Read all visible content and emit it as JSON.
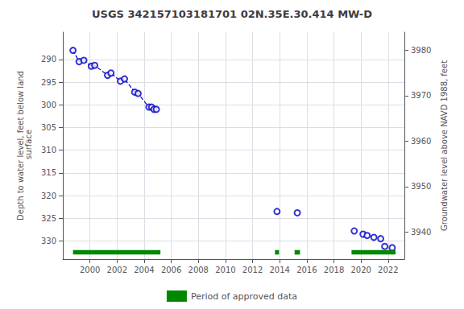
{
  "chart_data": {
    "type": "scatter",
    "title": "USGS 342157103181701 02N.35E.30.414 MW-D",
    "ylabel": "Depth to water level, feet below land\n surface",
    "y2label": "Groundwater level above NAVD 1988, feet",
    "xlim": [
      1998.0,
      2023.2
    ],
    "xticks": [
      2000,
      2002,
      2004,
      2006,
      2008,
      2010,
      2012,
      2014,
      2016,
      2018,
      2020,
      2022
    ],
    "ylim": [
      334,
      284
    ],
    "yticks": [
      290,
      295,
      300,
      305,
      310,
      315,
      320,
      325,
      330
    ],
    "y2lim": [
      3934,
      3984
    ],
    "y2ticks": [
      3940,
      3950,
      3960,
      3970,
      3980
    ],
    "grid": true,
    "legend": "bottom",
    "series": [
      {
        "type": "line",
        "line_style": "dashed",
        "color": "#0000cc",
        "x": [
          1998.75,
          1999.2,
          1999.55,
          2000.1,
          2000.35,
          2001.3,
          2001.55,
          2002.25,
          2002.55,
          2003.3,
          2003.55,
          2004.35,
          2004.55,
          2004.72,
          2004.9
        ],
        "values": [
          288.0,
          290.5,
          290.2,
          291.5,
          291.3,
          293.5,
          293.0,
          294.8,
          294.3,
          297.2,
          297.5,
          300.5,
          300.5,
          301.0,
          301.0
        ]
      },
      {
        "type": "scatter",
        "marker": "open_circle",
        "color": "#0000cc",
        "x": [
          1998.75,
          1999.2,
          1999.55,
          2000.1,
          2000.35,
          2001.3,
          2001.55,
          2002.25,
          2002.55,
          2003.3,
          2003.55,
          2004.35,
          2004.55,
          2004.72,
          2004.9,
          2013.8,
          2015.3,
          2019.5,
          2020.15,
          2020.45,
          2020.95,
          2021.45,
          2021.75,
          2022.3
        ],
        "values": [
          288.0,
          290.5,
          290.2,
          291.5,
          291.3,
          293.5,
          293.0,
          294.8,
          294.3,
          297.2,
          297.5,
          300.5,
          300.5,
          301.0,
          301.0,
          323.5,
          323.8,
          327.8,
          328.5,
          328.8,
          329.2,
          329.5,
          331.2,
          331.5
        ]
      },
      {
        "type": "bar",
        "name": "Period of approved data",
        "color": "#008800",
        "ranges": [
          [
            1998.75,
            2005.2
          ],
          [
            2013.65,
            2013.95
          ],
          [
            2015.1,
            2015.5
          ],
          [
            2019.3,
            2022.55
          ]
        ],
        "y_center": 332.5,
        "height": 1.0
      }
    ]
  }
}
